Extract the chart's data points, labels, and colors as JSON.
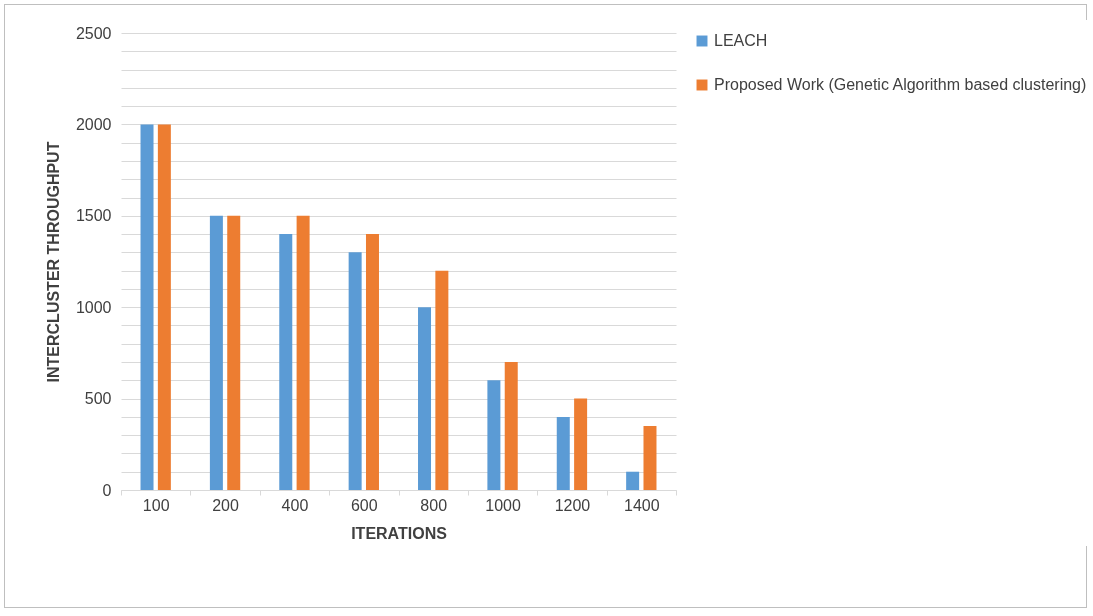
{
  "chart_data": {
    "type": "bar",
    "xlabel": "ITERATIONS",
    "ylabel": "INTERCLUSTER THROUGHPUT",
    "categories": [
      "100",
      "200",
      "400",
      "600",
      "800",
      "1000",
      "1200",
      "1400"
    ],
    "series": [
      {
        "name": "LEACH",
        "color": "#5b9bd5",
        "values": [
          2000,
          1500,
          1400,
          1300,
          1000,
          600,
          400,
          100
        ]
      },
      {
        "name": "Proposed Work (Genetic Algorithm based clustering)",
        "color": "#ed7d31",
        "values": [
          2000,
          1500,
          1500,
          1400,
          1200,
          700,
          500,
          350
        ]
      }
    ],
    "ylim": [
      0,
      2500
    ],
    "yticks": [
      0,
      {
        "value": 100,
        "label": null
      },
      {
        "value": 200,
        "label": null
      },
      {
        "value": 300,
        "label": null
      },
      {
        "value": 400,
        "label": null
      },
      500,
      {
        "value": 600,
        "label": null
      },
      {
        "value": 700,
        "label": null
      },
      {
        "value": 800,
        "label": null
      },
      {
        "value": 900,
        "label": null
      },
      1000,
      {
        "value": 1100,
        "label": null
      },
      {
        "value": 1200,
        "label": null
      },
      {
        "value": 1300,
        "label": null
      },
      {
        "value": 1400,
        "label": null
      },
      1500,
      {
        "value": 1600,
        "label": null
      },
      {
        "value": 1700,
        "label": null
      },
      {
        "value": 1800,
        "label": null
      },
      {
        "value": 1900,
        "label": null
      },
      2000,
      {
        "value": 2100,
        "label": null
      },
      {
        "value": 2200,
        "label": null
      },
      {
        "value": 2300,
        "label": null
      },
      {
        "value": 2400,
        "label": null
      },
      2500
    ],
    "grid": true,
    "legend": "right"
  }
}
